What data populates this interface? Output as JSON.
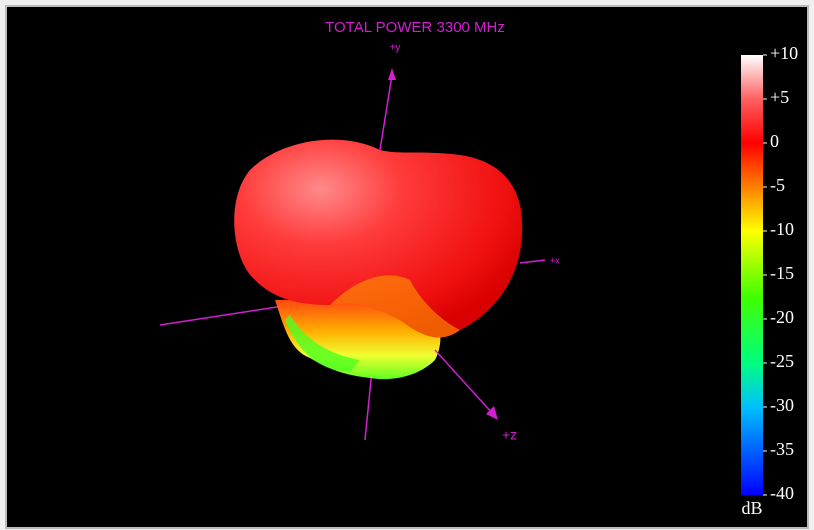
{
  "title": "TOTAL POWER 3300 MHz",
  "axes": {
    "y": "+y",
    "x": "+x",
    "z": "+z"
  },
  "colorbar": {
    "range": [
      -40,
      10
    ],
    "unit": "dB",
    "ticks": [
      {
        "value": 10,
        "label": "+10"
      },
      {
        "value": 5,
        "label": "+5"
      },
      0,
      -5,
      -10,
      -15,
      -20,
      -25,
      -30,
      -35,
      -40
    ]
  }
}
